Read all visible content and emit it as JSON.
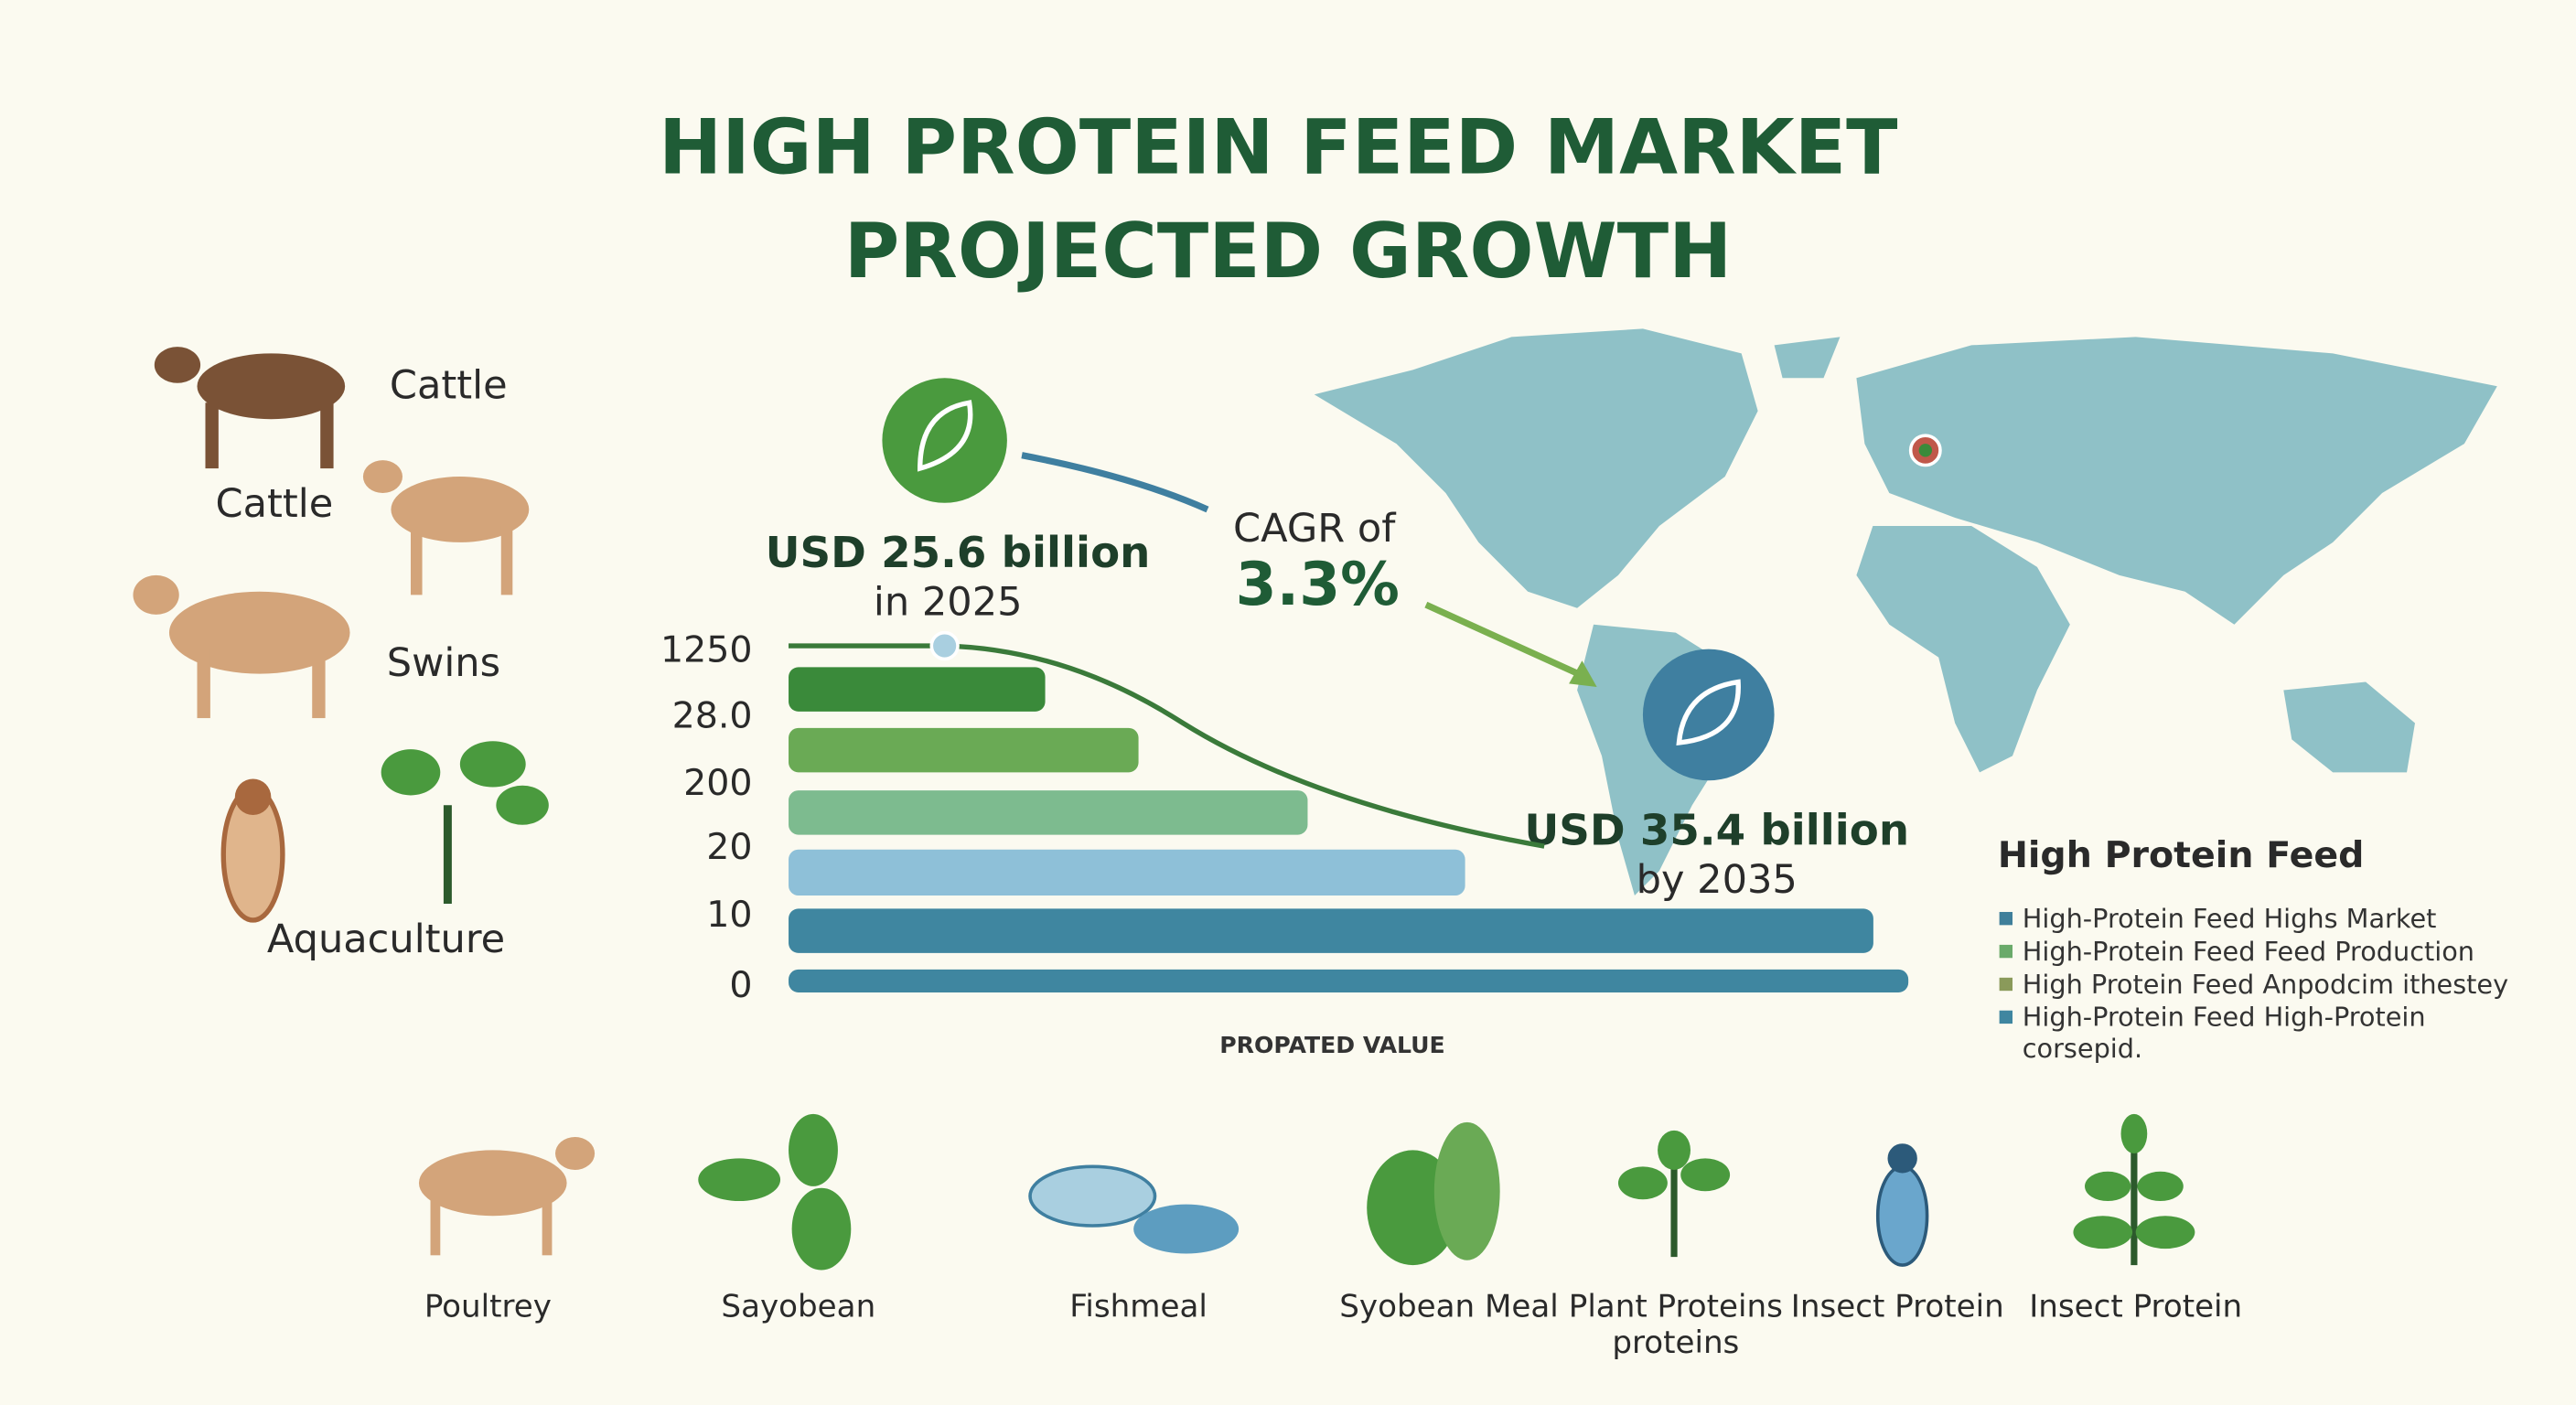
{
  "title": [
    "HIGH PROTEIN FEED MARKET",
    "PROJECTED GROWTH"
  ],
  "side_labels": [
    "Cattle",
    "Cattle",
    "Swins",
    "Aquaculture"
  ],
  "callouts": {
    "start_value": "USD 25.6 billion",
    "start_year": "in 2025",
    "cagr_label": "CAGR of",
    "cagr_value": "3.3%",
    "end_value": "USD 35.4 billion",
    "end_year": "by 2035"
  },
  "legend": {
    "title": "High Protein Feed",
    "items": [
      {
        "label": "High-Protein Feed Highs Market",
        "color": "#3f7f9a"
      },
      {
        "label": "High-Protein Feed Feed Production",
        "color": "#6aaa6a"
      },
      {
        "label": "High Protein Feed Anpodcim ithestey",
        "color": "#8a9a5a"
      },
      {
        "label": "High-Protein Feed High-Protein",
        "label2": "corsepid.",
        "color": "#3f86a0"
      }
    ]
  },
  "products": [
    "Poultrey",
    "Sayobean",
    "Fishmeal",
    "Syobean Meal",
    "Plant Proteins",
    "proteins",
    "Insect Protein",
    "Insect Protein"
  ],
  "chart_data": {
    "type": "bar",
    "orientation": "horizontal",
    "categories": [
      "1250",
      "28.0",
      "200",
      "20",
      "10",
      "0"
    ],
    "values": [
      22,
      30,
      44.5,
      58,
      93,
      96
    ],
    "colors": [
      "#3a8a3a",
      "#6aaa55",
      "#7dbb8f",
      "#8ec0d8",
      "#3f86a0",
      "#3f86a0"
    ],
    "xlim": [
      0,
      100
    ],
    "x_label": "PROPATED VALUE"
  }
}
